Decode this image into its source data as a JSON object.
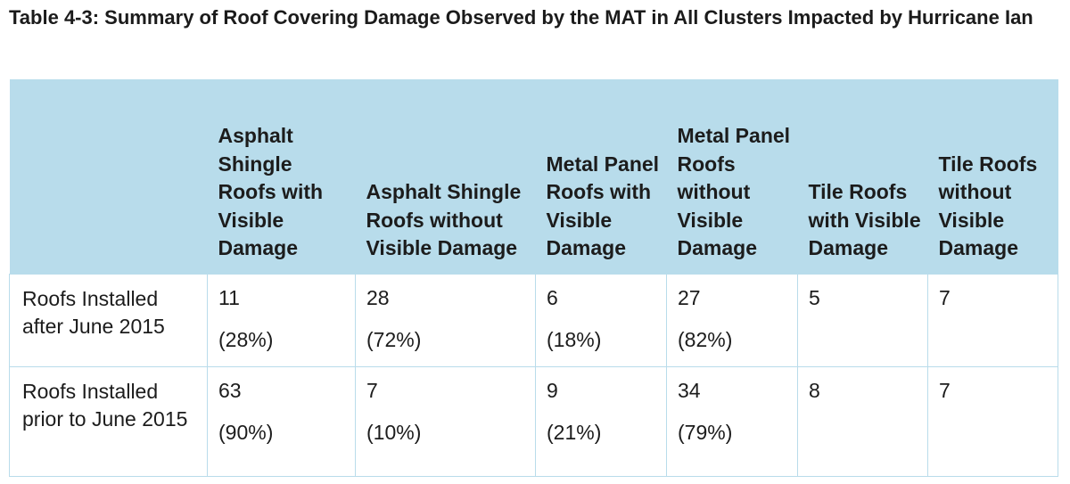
{
  "caption": "Table 4-3: Summary of Roof Covering Damage Observed by the MAT in All Clusters Impacted by Hurricane Ian",
  "table": {
    "header_colors": {
      "background": "#b8dceb",
      "grid": "#b9dceb"
    },
    "columns": [
      "",
      "Asphalt Shingle Roofs with Visible Damage",
      "Asphalt Shingle Roofs without Visible Damage",
      "Metal Panel Roofs with Visible Damage",
      "Metal Panel Roofs without Visible Damage",
      "Tile Roofs with Visible Damage",
      "Tile Roofs without Visible Damage"
    ],
    "rows": [
      {
        "label": "Roofs Installed after June 2015",
        "cells": [
          {
            "value": "11",
            "pct": "(28%)"
          },
          {
            "value": "28",
            "pct": "(72%)"
          },
          {
            "value": "6",
            "pct": "(18%)"
          },
          {
            "value": "27",
            "pct": "(82%)"
          },
          {
            "value": "5",
            "pct": ""
          },
          {
            "value": "7",
            "pct": ""
          }
        ]
      },
      {
        "label": "Roofs Installed prior to June 2015",
        "cells": [
          {
            "value": "63",
            "pct": "(90%)"
          },
          {
            "value": "7",
            "pct": "(10%)"
          },
          {
            "value": "9",
            "pct": "(21%)"
          },
          {
            "value": "34",
            "pct": "(79%)"
          },
          {
            "value": "8",
            "pct": ""
          },
          {
            "value": "7",
            "pct": ""
          }
        ]
      }
    ]
  }
}
